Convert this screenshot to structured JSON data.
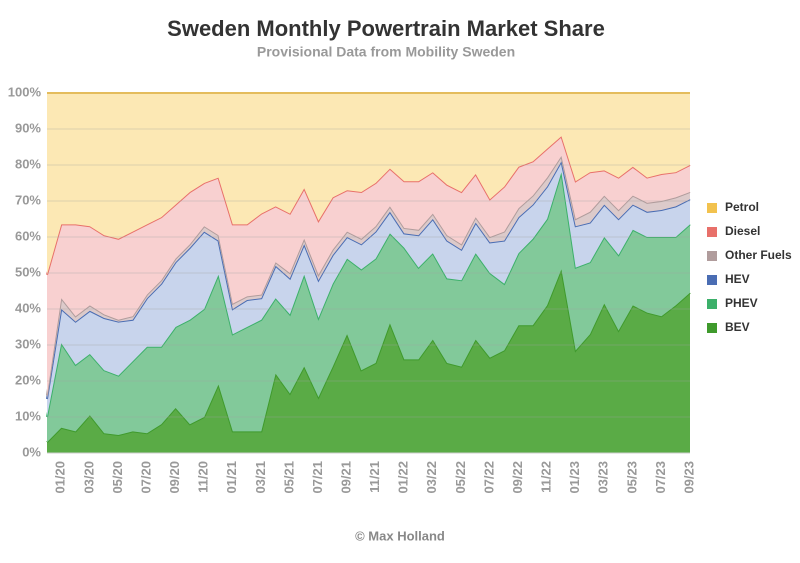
{
  "chart_data": {
    "type": "stacked_area",
    "title": "Sweden Monthly Powertrain Market Share",
    "subtitle": "Provisional Data from Mobility Sweden",
    "footer": "© Max Holland",
    "categories": [
      null,
      "01/20",
      null,
      "03/20",
      null,
      "05/20",
      null,
      "07/20",
      null,
      "09/20",
      null,
      "11/20",
      null,
      "01/21",
      null,
      "03/21",
      null,
      "05/21",
      null,
      "07/21",
      null,
      "09/21",
      null,
      "11/21",
      null,
      "01/22",
      null,
      "03/22",
      null,
      "05/22",
      null,
      "07/22",
      null,
      "09/22",
      null,
      "11/22",
      null,
      "01/23",
      null,
      "03/23",
      null,
      "05/23",
      null,
      "07/23",
      null,
      "09/23"
    ],
    "series": [
      {
        "name": "BEV",
        "color": "#5aab46",
        "values": [
          3,
          7,
          6,
          10.5,
          5.5,
          5,
          6,
          5.5,
          8,
          12.5,
          8,
          10,
          19,
          6,
          6,
          6,
          22,
          16.5,
          24,
          15.5,
          24,
          33,
          23,
          25,
          36,
          26,
          26,
          31.5,
          25,
          24,
          31.5,
          26.5,
          28.5,
          35.5,
          35.5,
          41,
          51,
          28.5,
          33,
          41.5,
          34,
          41,
          39,
          38,
          41,
          44.5
        ]
      },
      {
        "name": "PHEV",
        "color": "#82c99a",
        "values": [
          7,
          23.5,
          18.5,
          17,
          17.5,
          16.5,
          19.5,
          24,
          21.5,
          22.5,
          29,
          30,
          30.5,
          27,
          29,
          31,
          21,
          22,
          25.5,
          22,
          23,
          21,
          28,
          29,
          25,
          31,
          25.5,
          24,
          23.5,
          24,
          24,
          23.5,
          18.5,
          20,
          24,
          24,
          27,
          23,
          20,
          18.5,
          21,
          21,
          21,
          22,
          19,
          19
        ]
      },
      {
        "name": "HEV",
        "color": "#c8d4ec",
        "values": [
          5,
          9.5,
          12,
          12,
          14.5,
          15,
          11.5,
          13.5,
          17.5,
          18,
          20,
          21.5,
          9.5,
          7,
          7.5,
          6,
          9,
          10,
          8.5,
          10.5,
          8,
          6,
          7,
          7.5,
          6,
          4,
          9,
          9.5,
          10.5,
          8.5,
          8.5,
          8.5,
          12,
          10,
          9.5,
          9,
          3,
          11.5,
          11,
          9,
          10,
          7,
          7,
          7.5,
          8.5,
          7
        ]
      },
      {
        "name": "Other Fuels",
        "color": "#dccaca",
        "values": [
          1,
          3,
          1.5,
          1.5,
          1,
          0.5,
          1,
          1,
          1,
          1,
          1,
          1.5,
          1.5,
          1.5,
          1,
          1,
          1,
          1.5,
          1.5,
          1.5,
          1.5,
          1.5,
          1.5,
          1.5,
          1.5,
          1.5,
          1.5,
          1.5,
          1.5,
          1.5,
          1.5,
          1.5,
          2.5,
          2.5,
          2.5,
          2.5,
          1.5,
          2,
          3,
          2.5,
          2.5,
          2.5,
          2.5,
          2.5,
          2.5,
          2
        ]
      },
      {
        "name": "Diesel",
        "color": "#f8d0d0",
        "values": [
          33.5,
          20.5,
          25.5,
          22,
          22,
          22.5,
          23.5,
          19.5,
          17.5,
          15,
          14.5,
          12,
          16,
          22,
          20,
          22.5,
          15.5,
          16.5,
          14,
          15,
          14.5,
          11.5,
          13,
          12,
          10.5,
          13,
          13.5,
          11.5,
          14,
          14.5,
          12,
          10.5,
          12.5,
          11.5,
          9.5,
          8,
          5.5,
          10.5,
          11,
          7,
          9,
          8,
          7,
          7.5,
          7,
          7.5
        ]
      },
      {
        "name": "Petrol",
        "color": "#fce8b4",
        "values": [
          50.5,
          36.5,
          36.5,
          37,
          39.5,
          40.5,
          38.5,
          36.5,
          34.5,
          31,
          27.5,
          25,
          23.5,
          36.5,
          36.5,
          33.5,
          31.5,
          33.5,
          26.5,
          35.5,
          29,
          27,
          27.5,
          25,
          21,
          24.5,
          24.5,
          22,
          25.5,
          27.5,
          22.5,
          29.5,
          26,
          20.5,
          19,
          15.5,
          12,
          24.5,
          22,
          21.5,
          23.5,
          20.5,
          23.5,
          22.5,
          22,
          20
        ]
      }
    ],
    "line_colors": [
      "#3f9a2c",
      "#3cb06a",
      "#4a6db3",
      "#b09c9c",
      "#e8706a",
      "#f2c24e"
    ],
    "ylim": [
      0,
      100
    ],
    "yticks": [
      {
        "value": 0,
        "label": "0%"
      },
      {
        "value": 10,
        "label": "10%"
      },
      {
        "value": 20,
        "label": "20%"
      },
      {
        "value": 30,
        "label": "30%"
      },
      {
        "value": 40,
        "label": "40%"
      },
      {
        "value": 50,
        "label": "50%"
      },
      {
        "value": 60,
        "label": "60%"
      },
      {
        "value": 70,
        "label": "70%"
      },
      {
        "value": 80,
        "label": "80%"
      },
      {
        "value": 90,
        "label": "90%"
      },
      {
        "value": 100,
        "label": "100%"
      }
    ],
    "grid": true,
    "legend": "right"
  }
}
